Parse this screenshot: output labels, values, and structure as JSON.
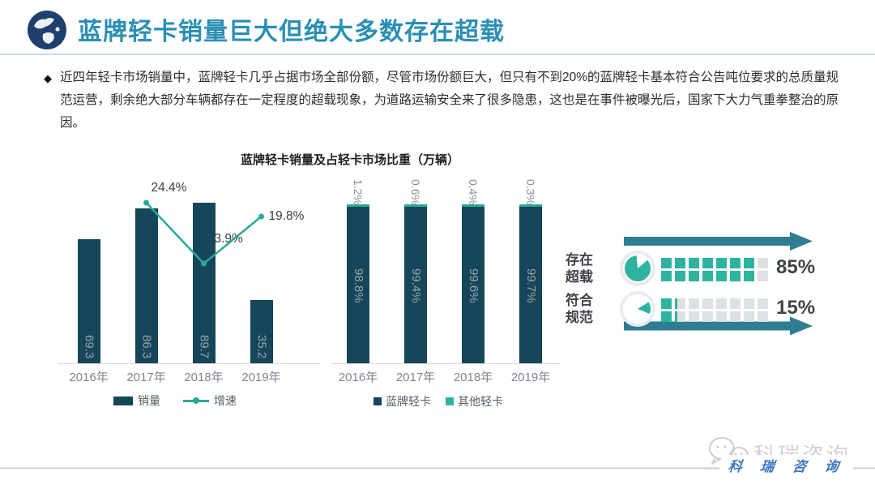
{
  "header": {
    "title": "蓝牌轻卡销量巨大但绝大多数存在超载",
    "logo_icon": "globe-icon"
  },
  "intro": {
    "bullet": "◆",
    "text": "近四年轻卡市场销量中，蓝牌轻卡几乎占据市场全部份额，尽管市场份额巨大，但只有不到20%的蓝牌轻卡基本符合公告吨位要求的总质量规范运营，剩余绝大部分车辆都存在一定程度的超载现象，为道路运输安全来了很多隐患，这也是在事件被曝光后，国家下大力气重拳整治的原因。"
  },
  "chart_data": [
    {
      "type": "bar",
      "title": "蓝牌轻卡销量及占轻卡市场比重（万辆）",
      "categories": [
        "2016年",
        "2017年",
        "2018年",
        "2019年"
      ],
      "series": [
        {
          "name": "销量",
          "type": "bar",
          "values": [
            69.3,
            86.3,
            89.7,
            35.2
          ],
          "labels": [
            "69.3",
            "86.3",
            "89.7",
            "35.2"
          ],
          "color": "#15465a"
        },
        {
          "name": "增速",
          "type": "line",
          "values": [
            null,
            24.4,
            3.9,
            19.8
          ],
          "labels": [
            "",
            "24.4%",
            "3.9%",
            "19.8%"
          ],
          "color": "#2aa89c"
        }
      ],
      "ylabel": "万辆",
      "axes_hidden": true,
      "legend_position": "bottom"
    },
    {
      "type": "stacked-bar-percent",
      "categories": [
        "2016年",
        "2017年",
        "2018年",
        "2019年"
      ],
      "series": [
        {
          "name": "蓝牌轻卡",
          "values": [
            98.8,
            99.4,
            99.6,
            99.7
          ],
          "labels": [
            "98.8%",
            "99.4%",
            "99.6%",
            "99.7%"
          ],
          "color": "#15465a"
        },
        {
          "name": "其他轻卡",
          "values": [
            1.2,
            0.6,
            0.4,
            0.3
          ],
          "labels": [
            "1.2%",
            "0.6%",
            "0.4%",
            "0.3%"
          ],
          "color": "#2aa89c"
        }
      ],
      "ylim": [
        0,
        100
      ],
      "axes_hidden": true,
      "legend_position": "bottom"
    }
  ],
  "overload_panel": {
    "rows": [
      {
        "label_line1": "存在",
        "label_line2": "超载",
        "percent": 85,
        "percent_label": "85%",
        "pie_icon": "pie-85-icon"
      },
      {
        "label_line1": "符合",
        "label_line2": "规范",
        "percent": 15,
        "percent_label": "15%",
        "pie_icon": "pie-15-icon"
      }
    ],
    "colors": {
      "arrow": "#2e7d92",
      "filled": "#2db3a0",
      "empty": "#dde0e4"
    }
  },
  "watermark": {
    "gray_text": "科瑞咨询",
    "blue_text": "科 瑞 咨 询",
    "icon": "wechat-icon"
  },
  "colors": {
    "title_blue": "#2b8fb4",
    "bar_dark": "#15465a",
    "accent_teal": "#2aa89c"
  }
}
